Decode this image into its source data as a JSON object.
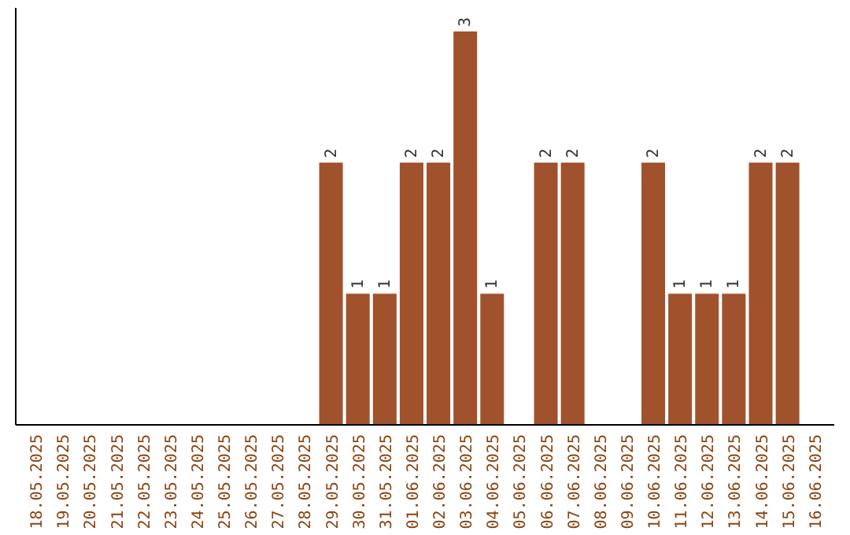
{
  "chart_data": {
    "type": "bar",
    "categories": [
      "18.05.2025",
      "19.05.2025",
      "20.05.2025",
      "21.05.2025",
      "22.05.2025",
      "23.05.2025",
      "24.05.2025",
      "25.05.2025",
      "26.05.2025",
      "27.05.2025",
      "28.05.2025",
      "29.05.2025",
      "30.05.2025",
      "31.05.2025",
      "01.06.2025",
      "02.06.2025",
      "03.06.2025",
      "04.06.2025",
      "05.06.2025",
      "06.06.2025",
      "07.06.2025",
      "08.06.2025",
      "09.06.2025",
      "10.06.2025",
      "11.06.2025",
      "12.06.2025",
      "13.06.2025",
      "14.06.2025",
      "15.06.2025",
      "16.06.2025"
    ],
    "values": [
      0,
      0,
      0,
      0,
      0,
      0,
      0,
      0,
      0,
      0,
      0,
      2,
      1,
      1,
      2,
      2,
      3,
      1,
      0,
      2,
      2,
      0,
      0,
      2,
      1,
      1,
      1,
      2,
      2,
      0
    ],
    "value_labels": [
      null,
      null,
      null,
      null,
      null,
      null,
      null,
      null,
      null,
      null,
      null,
      "2",
      "1",
      "1",
      "2",
      "2",
      "3",
      "1",
      null,
      "2",
      "2",
      null,
      null,
      "2",
      "1",
      "1",
      "1",
      "2",
      "2",
      null
    ],
    "color": "#a0522d"
  }
}
